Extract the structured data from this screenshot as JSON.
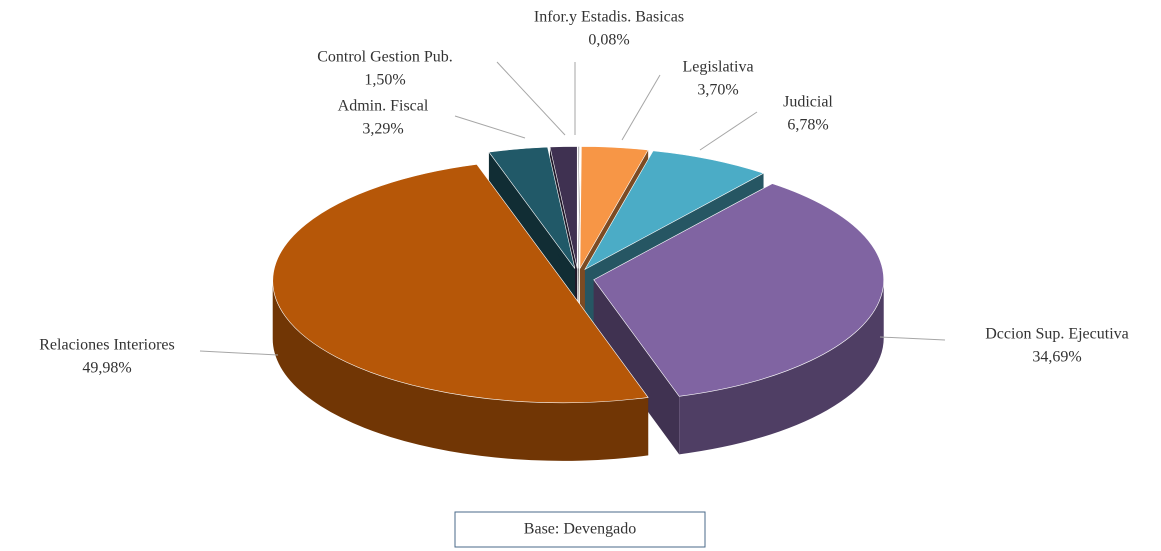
{
  "chart_data": {
    "type": "pie",
    "categories": [
      "Infor.y Estadis. Basicas",
      "Legislativa",
      "Judicial",
      "Dccion Sup. Ejecutiva",
      "Relaciones Interiores",
      "Admin. Fiscal",
      "Control Gestion Pub."
    ],
    "values": [
      0.08,
      3.7,
      6.78,
      34.69,
      49.98,
      3.29,
      1.5
    ],
    "value_labels": [
      "0,08%",
      "3,70%",
      "6,78%",
      "34,69%",
      "49,98%",
      "3,29%",
      "1,50%"
    ],
    "colors": [
      "#9a9a9a",
      "#f79646",
      "#4bacc6",
      "#8064a2",
      "#b65708",
      "#215968",
      "#3f3151"
    ],
    "note": "Base: Devengado"
  }
}
